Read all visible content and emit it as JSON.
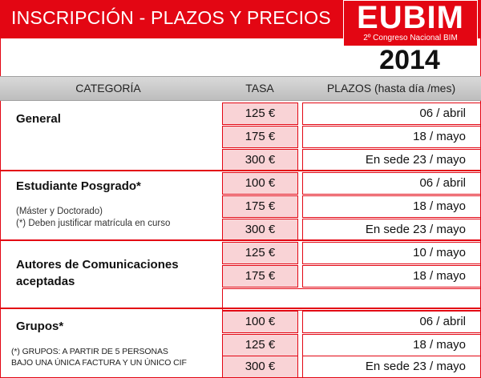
{
  "header": {
    "title": "INSCRIPCIÓN - PLAZOS Y PRECIOS",
    "logo_word": "EUBIM",
    "logo_sub": "2º Congreso Nacional BIM",
    "year": "2014"
  },
  "columns": {
    "categoria": "CATEGORÍA",
    "tasa": "TASA",
    "plazos": "PLAZOS (hasta día /mes)"
  },
  "groups": [
    {
      "title": "General",
      "rows": [
        {
          "tasa": "125 €",
          "plazo": "06 / abril"
        },
        {
          "tasa": "175 €",
          "plazo": "18 / mayo"
        },
        {
          "tasa": "300 €",
          "plazo": "En sede 23 / mayo"
        }
      ]
    },
    {
      "title": "Estudiante Posgrado*",
      "note1": "(Máster y Doctorado)",
      "note2": "(*) Deben justificar matrícula en curso",
      "rows": [
        {
          "tasa": "100 €",
          "plazo": "06 / abril"
        },
        {
          "tasa": "175 €",
          "plazo": "18 / mayo"
        },
        {
          "tasa": "300 €",
          "plazo": "En sede 23 / mayo"
        }
      ]
    },
    {
      "title_line1": "Autores de Comunicaciones",
      "title_line2": "aceptadas",
      "rows": [
        {
          "tasa": "125 €",
          "plazo": "10 / mayo"
        },
        {
          "tasa": "175 €",
          "plazo": "18 / mayo"
        }
      ]
    },
    {
      "title": "Grupos*",
      "note1": "(*) GRUPOS: A PARTIR DE 5 PERSONAS",
      "note2": "BAJO UNA ÚNICA FACTURA Y UN ÚNICO CIF",
      "rows": [
        {
          "tasa": "100 €",
          "plazo": "06 / abril"
        },
        {
          "tasa": "125 €",
          "plazo": "18 / mayo"
        },
        {
          "tasa": "300 €",
          "plazo": "En sede 23 / mayo"
        }
      ]
    }
  ],
  "colors": {
    "brand_red": "#e30613",
    "cell_pink": "#f9d3d6",
    "header_gray": "#c8c8c8"
  }
}
